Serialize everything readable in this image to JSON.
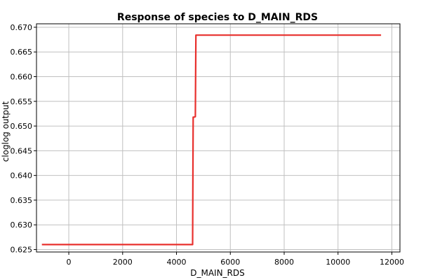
{
  "chart_data": {
    "type": "line",
    "title": "Response of species to D_MAIN_RDS",
    "xlabel": "D_MAIN_RDS",
    "ylabel": "cloglog output",
    "xlim": [
      -1200,
      12300
    ],
    "ylim": [
      0.6245,
      0.6707
    ],
    "xticks": [
      0,
      2000,
      4000,
      6000,
      8000,
      10000,
      12000
    ],
    "xtick_labels": [
      "0",
      "2000",
      "4000",
      "6000",
      "8000",
      "10000",
      "12000"
    ],
    "yticks": [
      0.625,
      0.63,
      0.635,
      0.64,
      0.645,
      0.65,
      0.655,
      0.66,
      0.665,
      0.67
    ],
    "ytick_labels": [
      "0.625",
      "0.630",
      "0.635",
      "0.640",
      "0.645",
      "0.650",
      "0.655",
      "0.660",
      "0.665",
      "0.670"
    ],
    "grid": true,
    "series": [
      {
        "color": "#e8302d",
        "x": [
          -1000,
          4600,
          4620,
          4650,
          4700,
          4720,
          4750,
          4760,
          11600
        ],
        "y": [
          0.626,
          0.626,
          0.6518,
          0.6518,
          0.6519,
          0.6684,
          0.6684,
          0.6684,
          0.6684
        ]
      }
    ]
  }
}
